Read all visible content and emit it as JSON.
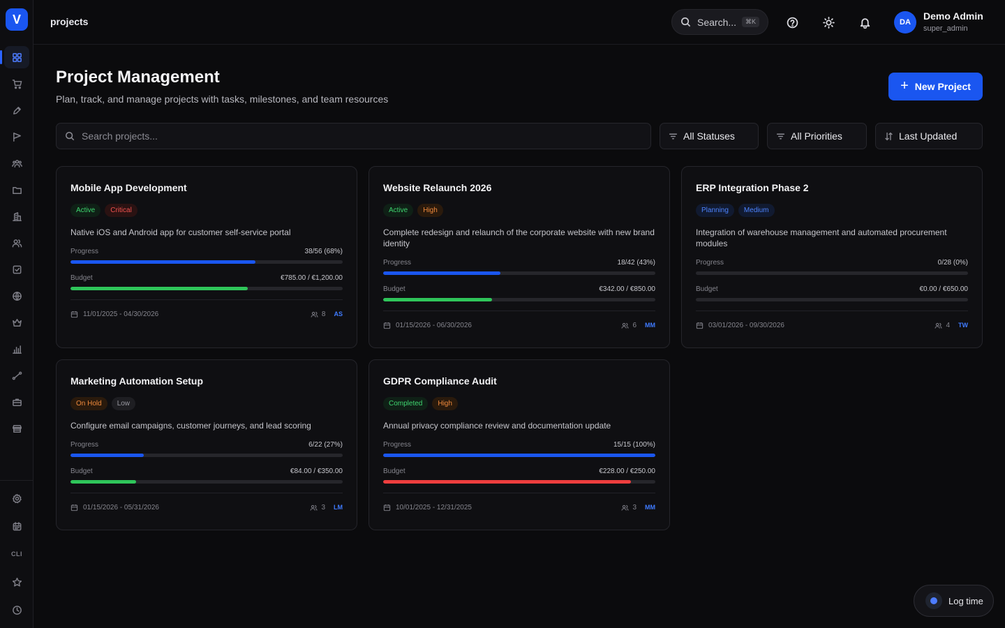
{
  "app": {
    "logo_letter": "V"
  },
  "header": {
    "breadcrumb": "projects",
    "search_label": "Search...",
    "search_shortcut": "⌘K",
    "user": {
      "initials": "DA",
      "name": "Demo Admin",
      "role": "super_admin"
    }
  },
  "sidebar": {
    "items": [
      {
        "icon": "grid-icon",
        "active": true
      },
      {
        "icon": "cart-icon"
      },
      {
        "icon": "pen-icon"
      },
      {
        "icon": "flag-icon"
      },
      {
        "icon": "team-icon"
      },
      {
        "icon": "folder-icon"
      },
      {
        "icon": "building-icon"
      },
      {
        "icon": "users-icon"
      },
      {
        "icon": "checkbox-icon"
      },
      {
        "icon": "globe-icon"
      },
      {
        "icon": "crown-icon"
      },
      {
        "icon": "bar-chart-icon"
      },
      {
        "icon": "route-icon"
      },
      {
        "icon": "briefcase-icon"
      },
      {
        "icon": "store-icon"
      }
    ],
    "bottom_items": [
      {
        "icon": "settings-icon"
      },
      {
        "icon": "calendar-icon"
      },
      {
        "icon": "cli-icon",
        "label": "CLI"
      },
      {
        "icon": "star-icon"
      },
      {
        "icon": "clock-icon"
      }
    ]
  },
  "page": {
    "title": "Project Management",
    "subtitle": "Plan, track, and manage projects with tasks, milestones, and team resources",
    "new_button": "New Project",
    "search_placeholder": "Search projects...",
    "filters": {
      "status": "All Statuses",
      "priority": "All Priorities",
      "sort": "Last Updated"
    }
  },
  "labels": {
    "progress": "Progress",
    "budget": "Budget"
  },
  "projects": [
    {
      "title": "Mobile App Development",
      "status": "Active",
      "priority": "Critical",
      "description": "Native iOS and Android app for customer self-service portal",
      "progress_text": "38/56 (68%)",
      "progress": 0.68,
      "budget_text": "€785.00 / €1,200.00",
      "budget": 0.65,
      "budget_color": "green",
      "dates": "11/01/2025 - 04/30/2026",
      "members": "8",
      "owner": "AS"
    },
    {
      "title": "Website Relaunch 2026",
      "status": "Active",
      "priority": "High",
      "description": "Complete redesign and relaunch of the corporate website with new brand identity",
      "progress_text": "18/42 (43%)",
      "progress": 0.43,
      "budget_text": "€342.00 / €850.00",
      "budget": 0.4,
      "budget_color": "green",
      "dates": "01/15/2026 - 06/30/2026",
      "members": "6",
      "owner": "MM"
    },
    {
      "title": "ERP Integration Phase 2",
      "status": "Planning",
      "priority": "Medium",
      "description": "Integration of warehouse management and automated procurement modules",
      "progress_text": "0/28 (0%)",
      "progress": 0,
      "budget_text": "€0.00 / €650.00",
      "budget": 0,
      "budget_color": "green",
      "dates": "03/01/2026 - 09/30/2026",
      "members": "4",
      "owner": "TW"
    },
    {
      "title": "Marketing Automation Setup",
      "status": "On Hold",
      "priority": "Low",
      "description": "Configure email campaigns, customer journeys, and lead scoring",
      "progress_text": "6/22 (27%)",
      "progress": 0.27,
      "budget_text": "€84.00 / €350.00",
      "budget": 0.24,
      "budget_color": "green",
      "dates": "01/15/2026 - 05/31/2026",
      "members": "3",
      "owner": "LM"
    },
    {
      "title": "GDPR Compliance Audit",
      "status": "Completed",
      "priority": "High",
      "description": "Annual privacy compliance review and documentation update",
      "progress_text": "15/15 (100%)",
      "progress": 1.0,
      "budget_text": "€228.00 / €250.00",
      "budget": 0.91,
      "budget_color": "red",
      "dates": "10/01/2025 - 12/31/2025",
      "members": "3",
      "owner": "MM"
    }
  ],
  "log_time": "Log time"
}
